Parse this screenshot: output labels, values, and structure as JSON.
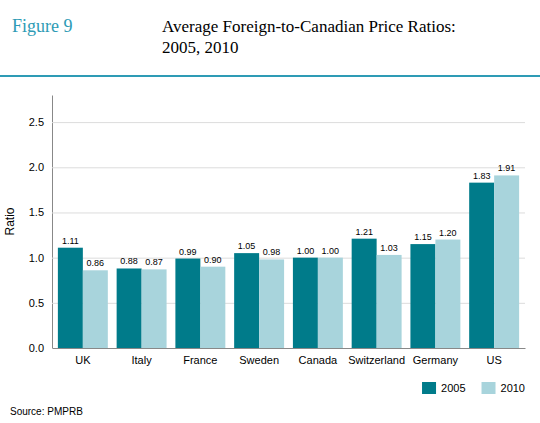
{
  "chart_data": {
    "type": "bar",
    "title": "Average Foreign-to-Canadian Price Ratios:\n2005, 2010",
    "annotations": [
      "Figure 9",
      "Source: PMPRB"
    ],
    "y_label": "Ratio",
    "categories": [
      "UK",
      "Italy",
      "France",
      "Sweden",
      "Canada",
      "Switzerland",
      "Germany",
      "US"
    ],
    "series": [
      {
        "name": "2005",
        "color": "#007B8A",
        "values": [
          1.11,
          0.88,
          0.99,
          1.05,
          1.0,
          1.21,
          1.15,
          1.83
        ],
        "value_labels": [
          "1.11",
          "0.88",
          "0.99",
          "1.05",
          "1.00",
          "1.21",
          "1.15",
          "1.83"
        ]
      },
      {
        "name": "2010",
        "color": "#A8D4DC",
        "values": [
          0.86,
          0.87,
          0.9,
          0.98,
          1.0,
          1.03,
          1.2,
          1.91
        ],
        "value_labels": [
          "0.86",
          "0.87",
          "0.90",
          "0.98",
          "1.00",
          "1.03",
          "1.20",
          "1.91"
        ]
      }
    ],
    "ylim": [
      0.0,
      2.8
    ],
    "yticks": [
      {
        "value": 0.0,
        "label": "0.0"
      },
      0.5,
      {
        "value": 1.0,
        "label": "1.0"
      },
      1.5,
      {
        "value": 2.0,
        "label": "2.0"
      },
      2.5
    ],
    "grid": true,
    "legend": "bottom",
    "data_labels": true
  }
}
